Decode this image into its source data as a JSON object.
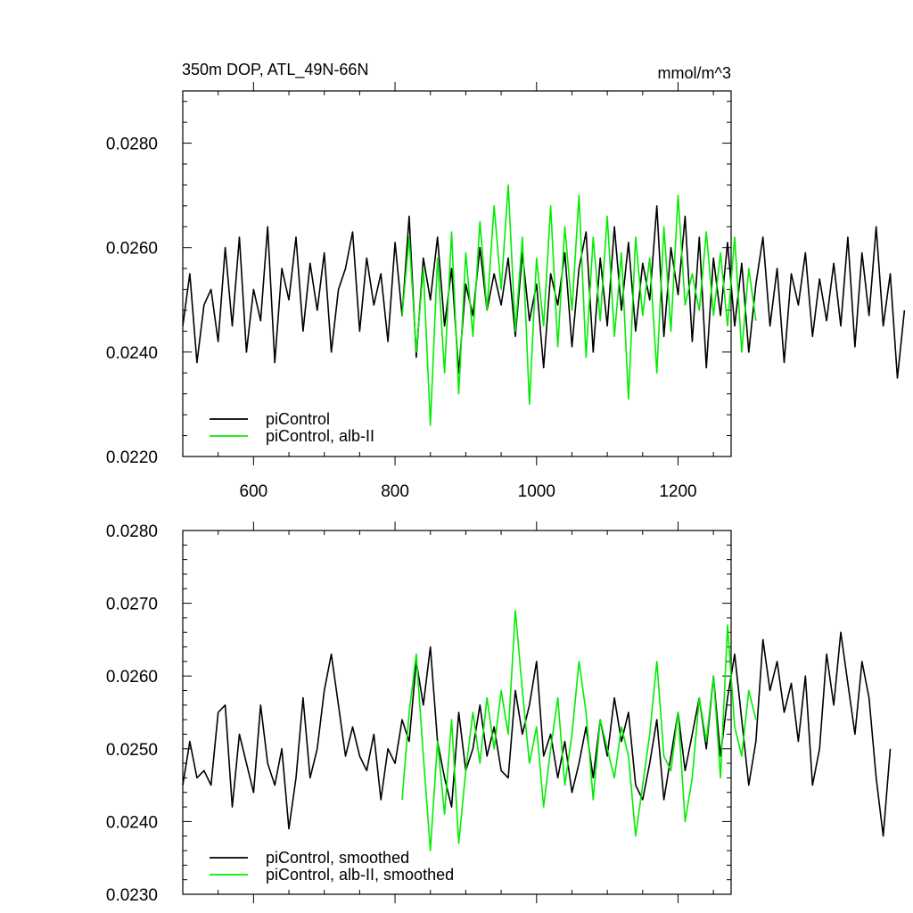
{
  "figure": {
    "title_left": "350m DOP, ATL_49N-66N",
    "title_right": "mmol/m^3"
  },
  "colors": {
    "piControl": "#000000",
    "alb_II": "#00ee00"
  },
  "chart_data": [
    {
      "type": "line",
      "xlim": [
        500,
        1275
      ],
      "ylim": [
        0.022,
        0.029
      ],
      "xticks": [
        600,
        800,
        1000,
        1200
      ],
      "xtick_labels": [
        "600",
        "800",
        "1000",
        "1200"
      ],
      "yticks": [
        0.022,
        0.024,
        0.026,
        0.028
      ],
      "ytick_labels": [
        "0.0220",
        "0.0240",
        "0.0260",
        "0.0280"
      ],
      "grid": false,
      "legend_position": "bottom-left",
      "series": [
        {
          "name": "piControl",
          "color": "#000000",
          "x_start": 500,
          "x_step": 10,
          "values": [
            0.0245,
            0.0255,
            0.0238,
            0.0249,
            0.0252,
            0.0242,
            0.026,
            0.0245,
            0.0262,
            0.024,
            0.0252,
            0.0246,
            0.0264,
            0.0238,
            0.0256,
            0.025,
            0.0262,
            0.0244,
            0.0257,
            0.0248,
            0.0259,
            0.024,
            0.0252,
            0.0256,
            0.0263,
            0.0244,
            0.0258,
            0.0249,
            0.0255,
            0.0242,
            0.0261,
            0.0247,
            0.0266,
            0.0239,
            0.0258,
            0.025,
            0.0262,
            0.0245,
            0.0256,
            0.0236,
            0.0253,
            0.0247,
            0.026,
            0.0248,
            0.0255,
            0.0249,
            0.0258,
            0.0243,
            0.0259,
            0.0246,
            0.0253,
            0.0237,
            0.0255,
            0.0249,
            0.0259,
            0.0241,
            0.0256,
            0.0263,
            0.024,
            0.0258,
            0.0245,
            0.0264,
            0.0248,
            0.0261,
            0.0244,
            0.0257,
            0.025,
            0.0268,
            0.0243,
            0.026,
            0.0251,
            0.0266,
            0.0242,
            0.0262,
            0.0237,
            0.0258,
            0.0247,
            0.0261,
            0.0245,
            0.0257,
            0.024,
            0.0253,
            0.0262,
            0.0245,
            0.0256,
            0.0238,
            0.0255,
            0.0249,
            0.0259,
            0.0243,
            0.0254,
            0.0246,
            0.0257,
            0.0245,
            0.0262,
            0.0241,
            0.0259,
            0.0247,
            0.0264,
            0.0245,
            0.0255,
            0.0235,
            0.0248
          ]
        },
        {
          "name": "piControl, alb-II",
          "color": "#00ee00",
          "x_start": 810,
          "x_step": 10,
          "values": [
            0.0247,
            0.0262,
            0.024,
            0.0256,
            0.0226,
            0.0258,
            0.0236,
            0.0263,
            0.0232,
            0.0259,
            0.0243,
            0.0265,
            0.0248,
            0.0268,
            0.0252,
            0.0272,
            0.0244,
            0.0262,
            0.023,
            0.0258,
            0.0245,
            0.0268,
            0.0241,
            0.0264,
            0.0248,
            0.027,
            0.0239,
            0.0262,
            0.0246,
            0.0266,
            0.0243,
            0.0259,
            0.0231,
            0.0262,
            0.0247,
            0.0258,
            0.0236,
            0.0264,
            0.0244,
            0.027,
            0.0249,
            0.0255,
            0.0248,
            0.0263,
            0.0247,
            0.0259,
            0.0245,
            0.0262,
            0.024,
            0.0256,
            0.0246
          ]
        }
      ],
      "legend": [
        {
          "label": "piControl",
          "color": "#000000"
        },
        {
          "label": "piControl, alb-II",
          "color": "#00ee00"
        }
      ]
    },
    {
      "type": "line",
      "xlim": [
        500,
        1275
      ],
      "ylim": [
        0.023,
        0.028
      ],
      "xticks": [
        600,
        800,
        1000,
        1200
      ],
      "xtick_labels": [],
      "yticks": [
        0.023,
        0.024,
        0.025,
        0.026,
        0.027,
        0.028
      ],
      "ytick_labels": [
        "0.0230",
        "0.0240",
        "0.0250",
        "0.0260",
        "0.0270",
        "0.0280"
      ],
      "grid": false,
      "legend_position": "bottom-left",
      "series": [
        {
          "name": "piControl, smoothed",
          "color": "#000000",
          "x_start": 500,
          "x_step": 10,
          "values": [
            0.0245,
            0.0251,
            0.0246,
            0.0247,
            0.0245,
            0.0255,
            0.0256,
            0.0242,
            0.0252,
            0.0248,
            0.0244,
            0.0256,
            0.0248,
            0.0245,
            0.025,
            0.0239,
            0.0246,
            0.0257,
            0.0246,
            0.025,
            0.0258,
            0.0263,
            0.0256,
            0.0249,
            0.0253,
            0.0249,
            0.0247,
            0.0252,
            0.0243,
            0.025,
            0.0248,
            0.0254,
            0.0251,
            0.0262,
            0.0256,
            0.0264,
            0.0251,
            0.0246,
            0.0242,
            0.0255,
            0.0247,
            0.025,
            0.0256,
            0.0249,
            0.0253,
            0.0247,
            0.0246,
            0.0258,
            0.0252,
            0.0256,
            0.0262,
            0.0249,
            0.0252,
            0.0246,
            0.0251,
            0.0244,
            0.0248,
            0.0253,
            0.0246,
            0.0254,
            0.0249,
            0.0257,
            0.0251,
            0.0255,
            0.0245,
            0.0243,
            0.0248,
            0.0254,
            0.0243,
            0.0249,
            0.0255,
            0.0247,
            0.0252,
            0.0257,
            0.025,
            0.026,
            0.0249,
            0.0257,
            0.0263,
            0.0254,
            0.0245,
            0.0251,
            0.0265,
            0.0258,
            0.0262,
            0.0255,
            0.0259,
            0.0251,
            0.026,
            0.0245,
            0.025,
            0.0263,
            0.0256,
            0.0266,
            0.0259,
            0.0252,
            0.0262,
            0.0257,
            0.0246,
            0.0238,
            0.025
          ]
        },
        {
          "name": "piControl, alb-II, smoothed",
          "color": "#00ee00",
          "x_start": 810,
          "x_step": 10,
          "values": [
            0.0243,
            0.0255,
            0.0263,
            0.0249,
            0.0236,
            0.0251,
            0.0241,
            0.0254,
            0.0237,
            0.0247,
            0.0255,
            0.0248,
            0.0257,
            0.025,
            0.0258,
            0.0252,
            0.0269,
            0.0258,
            0.0248,
            0.0253,
            0.0242,
            0.025,
            0.0257,
            0.0245,
            0.0252,
            0.0262,
            0.0255,
            0.0243,
            0.0254,
            0.025,
            0.0246,
            0.0253,
            0.0249,
            0.0238,
            0.0245,
            0.0252,
            0.0262,
            0.0249,
            0.0247,
            0.0255,
            0.024,
            0.0246,
            0.0257,
            0.0251,
            0.026,
            0.0246,
            0.0267,
            0.0253,
            0.0249,
            0.0258,
            0.0254
          ]
        }
      ],
      "legend": [
        {
          "label": "piControl, smoothed",
          "color": "#000000"
        },
        {
          "label": "piControl, alb-II, smoothed",
          "color": "#00ee00"
        }
      ]
    }
  ]
}
